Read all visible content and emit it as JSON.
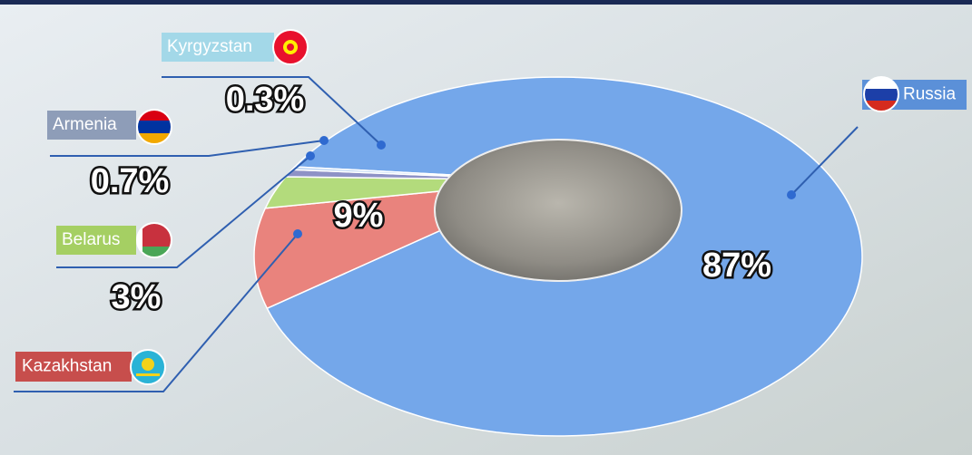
{
  "chart_data": {
    "type": "donut",
    "categories": [
      "Russia",
      "Kazakhstan",
      "Belarus",
      "Armenia",
      "Kyrgyzstan"
    ],
    "values": [
      87,
      9,
      3,
      0.7,
      0.3
    ],
    "value_labels": [
      "87%",
      "9%",
      "3%",
      "0.7%",
      "0.3%"
    ],
    "colors": [
      "#74a7ea",
      "#e9837d",
      "#b3db7c",
      "#8e92c6",
      "#c1d8f4"
    ]
  }
}
